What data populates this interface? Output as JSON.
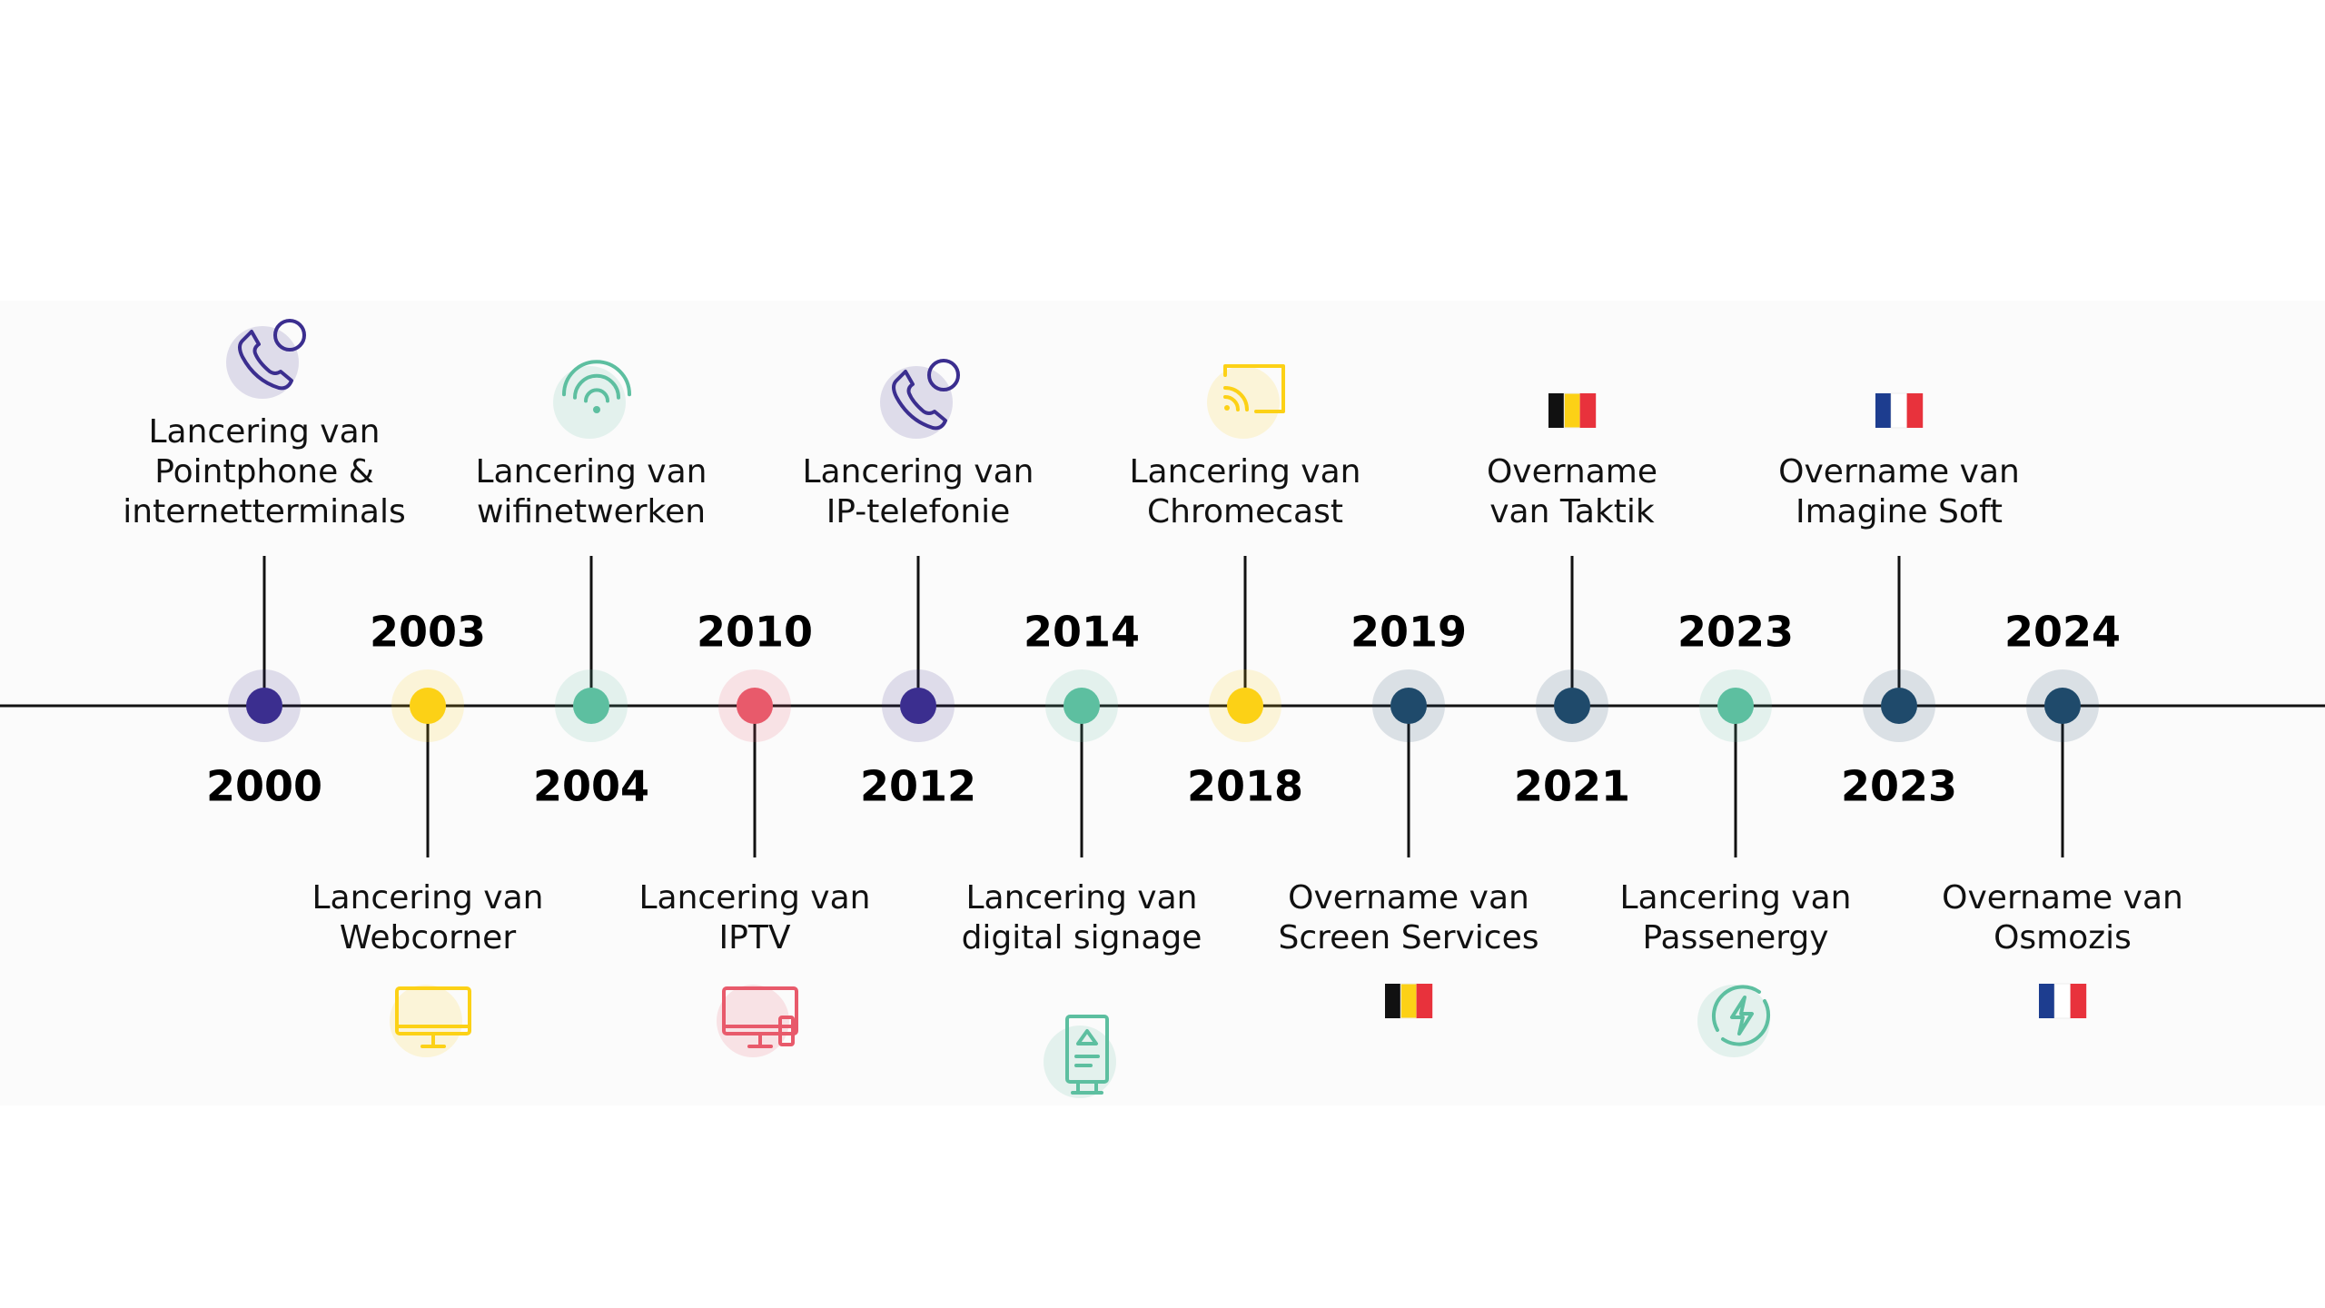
{
  "timeline": {
    "events": [
      {
        "year": 2000,
        "lines": [
          "Lancering van",
          "Pointphone &",
          "internetterminals"
        ],
        "color": "#3b2e8f"
      },
      {
        "year": 2003,
        "lines": [
          "Lancering van",
          "Webcorner"
        ],
        "color": "#fcd116"
      },
      {
        "year": 2004,
        "lines": [
          "Lancering van",
          "wifinetwerken"
        ],
        "color": "#5dbfa0"
      },
      {
        "year": 2010,
        "lines": [
          "Lancering van",
          "IPTV"
        ],
        "color": "#e85a6b"
      },
      {
        "year": 2012,
        "lines": [
          "Lancering van",
          "IP-telefonie"
        ],
        "color": "#3b2e8f"
      },
      {
        "year": 2014,
        "lines": [
          "Lancering van",
          "digital signage"
        ],
        "color": "#5dbfa0"
      },
      {
        "year": 2018,
        "lines": [
          "Lancering van",
          "Chromecast"
        ],
        "color": "#fcd116"
      },
      {
        "year": 2019,
        "lines": [
          "Overname van",
          "Screen Services"
        ],
        "color": "#1f4a6b"
      },
      {
        "year": 2021,
        "lines": [
          "Overname",
          "van Taktik"
        ],
        "color": "#1f4a6b"
      },
      {
        "year": 2023,
        "lines": [
          "Lancering van",
          "Passenergy"
        ],
        "color": "#5dbfa0"
      },
      {
        "year": 2023,
        "lines": [
          "Overname van",
          "Imagine Soft"
        ],
        "color": "#1f4a6b"
      },
      {
        "year": 2024,
        "lines": [
          "Overname van",
          "Osmozis"
        ],
        "color": "#1f4a6b"
      }
    ]
  }
}
